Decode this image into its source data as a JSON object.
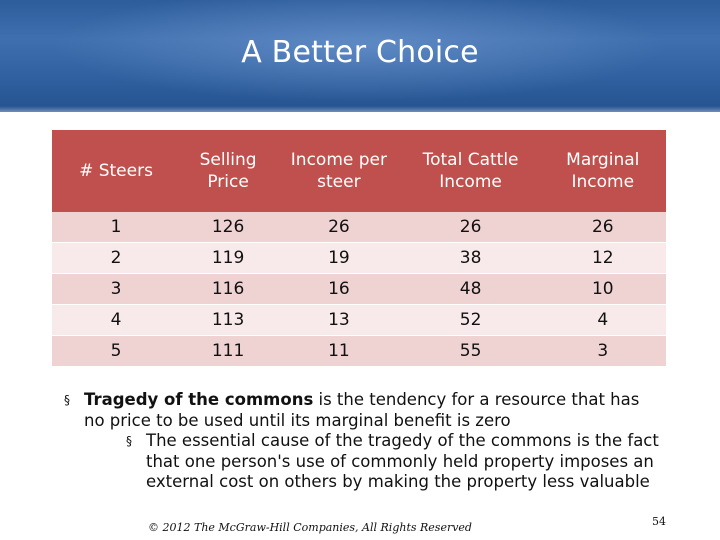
{
  "slide": {
    "title": "A Better Choice"
  },
  "table": {
    "headers": [
      "# Steers",
      "Selling Price",
      "Income per steer",
      "Total Cattle Income",
      "Marginal Income"
    ],
    "rows": [
      [
        "1",
        "126",
        "26",
        "26",
        "26"
      ],
      [
        "2",
        "119",
        "19",
        "38",
        "12"
      ],
      [
        "3",
        "116",
        "16",
        "48",
        "10"
      ],
      [
        "4",
        "113",
        "13",
        "52",
        "4"
      ],
      [
        "5",
        "111",
        "11",
        "55",
        "3"
      ]
    ]
  },
  "bullets": {
    "marker": "§",
    "main_bold": "Tragedy of the commons",
    "main_rest": " is the tendency for a resource that has no price to be used until its marginal benefit is zero",
    "sub": "The essential cause of the tragedy of the commons is the fact that one person's use of commonly held property imposes an external cost on others by making the property less valuable"
  },
  "footer": {
    "copyright": "© 2012 The McGraw-Hill Companies, All Rights Reserved",
    "page_number": "54"
  },
  "colors": {
    "header_bg": "#c0504d",
    "row_odd": "#efd3d2",
    "row_even": "#f8eaea",
    "title_bar": "#30609f"
  }
}
